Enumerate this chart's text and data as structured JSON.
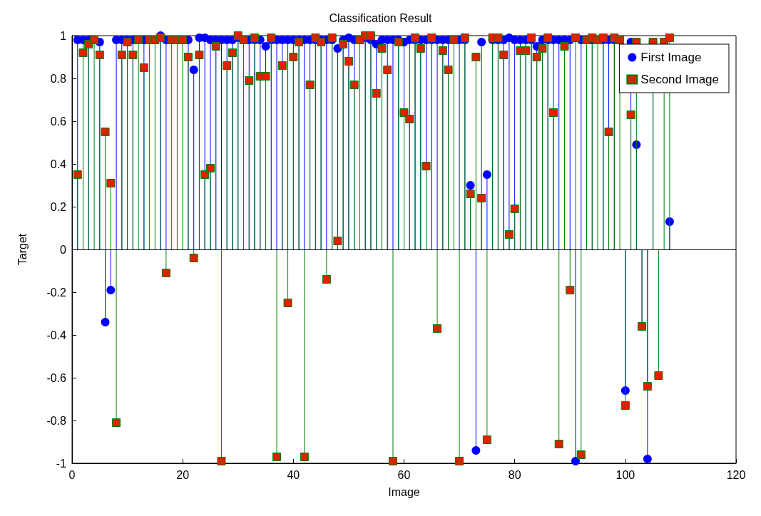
{
  "chart_data": {
    "type": "lollipop",
    "title": "Classification Result",
    "xlabel": "Image",
    "ylabel": "Target",
    "x": [
      1,
      2,
      3,
      4,
      5,
      6,
      7,
      8,
      9,
      10,
      11,
      12,
      13,
      14,
      15,
      16,
      17,
      18,
      19,
      20,
      21,
      22,
      23,
      24,
      25,
      26,
      27,
      28,
      29,
      30,
      31,
      32,
      33,
      34,
      35,
      36,
      37,
      38,
      39,
      40,
      41,
      42,
      43,
      44,
      45,
      46,
      47,
      48,
      49,
      50,
      51,
      52,
      53,
      54,
      55,
      56,
      57,
      58,
      59,
      60,
      61,
      62,
      63,
      64,
      65,
      66,
      67,
      68,
      69,
      70,
      71,
      72,
      73,
      74,
      75,
      76,
      77,
      78,
      79,
      80,
      81,
      82,
      83,
      84,
      85,
      86,
      87,
      88,
      89,
      90,
      91,
      92,
      93,
      94,
      95,
      96,
      97,
      98,
      99,
      100,
      101,
      102,
      103,
      104,
      105,
      106,
      107,
      108
    ],
    "series": [
      {
        "name": "First Image",
        "color": "#0000ff",
        "marker": "circle",
        "values": [
          0.98,
          0.98,
          0.98,
          null,
          0.97,
          -0.34,
          -0.19,
          0.98,
          0.98,
          0.98,
          0.98,
          null,
          0.98,
          null,
          null,
          1.0,
          0.98,
          null,
          null,
          null,
          0.98,
          0.84,
          0.99,
          0.99,
          0.98,
          0.98,
          0.98,
          0.98,
          0.98,
          0.99,
          null,
          0.98,
          0.98,
          0.98,
          0.95,
          0.98,
          0.98,
          0.98,
          0.98,
          0.98,
          0.98,
          0.98,
          0.98,
          0.98,
          0.98,
          0.98,
          0.98,
          0.94,
          0.98,
          0.99,
          0.98,
          null,
          0.99,
          0.98,
          0.96,
          0.98,
          0.98,
          0.98,
          0.98,
          0.97,
          0.98,
          0.98,
          0.98,
          0.98,
          0.98,
          0.98,
          0.98,
          0.98,
          null,
          0.98,
          0.98,
          0.3,
          -0.94,
          0.97,
          0.35,
          0.98,
          0.98,
          0.98,
          0.99,
          0.98,
          0.98,
          0.98,
          0.98,
          0.95,
          0.98,
          0.98,
          0.98,
          0.98,
          0.98,
          0.98,
          -0.99,
          0.98,
          null,
          0.98,
          null,
          0.98,
          0.98,
          0.98,
          null,
          -0.66,
          0.97,
          0.49,
          -0.36,
          -0.98,
          0.97,
          null,
          null,
          0.13
        ]
      },
      {
        "name": "Second Image",
        "color": "#008000",
        "marker": "square",
        "values": [
          0.35,
          0.92,
          0.96,
          0.98,
          0.91,
          0.55,
          0.31,
          -0.81,
          0.91,
          0.97,
          0.91,
          0.98,
          0.85,
          0.98,
          0.98,
          0.99,
          -0.11,
          0.98,
          0.98,
          0.98,
          0.9,
          -0.04,
          0.91,
          0.35,
          0.38,
          0.95,
          -0.99,
          0.86,
          0.92,
          1.0,
          0.98,
          0.79,
          0.99,
          0.81,
          0.81,
          0.99,
          -0.97,
          0.86,
          -0.25,
          0.9,
          0.97,
          -0.97,
          0.77,
          0.99,
          0.97,
          -0.14,
          0.99,
          0.04,
          0.96,
          0.88,
          0.77,
          0.98,
          1.0,
          1.0,
          0.73,
          0.94,
          0.84,
          -0.99,
          0.97,
          0.64,
          0.61,
          0.99,
          0.94,
          0.39,
          0.99,
          -0.37,
          0.93,
          0.84,
          0.98,
          -0.99,
          0.99,
          0.26,
          0.9,
          0.24,
          -0.89,
          0.99,
          0.99,
          0.91,
          0.07,
          0.19,
          0.93,
          0.93,
          0.99,
          0.9,
          0.94,
          0.99,
          0.64,
          -0.91,
          0.95,
          -0.19,
          0.99,
          -0.96,
          0.98,
          0.99,
          0.98,
          0.99,
          0.55,
          0.99,
          0.98,
          -0.73,
          0.63,
          0.97,
          -0.36,
          -0.64,
          0.97,
          -0.59,
          0.97,
          0.99
        ]
      }
    ],
    "xlim": [
      0,
      120
    ],
    "xticks": [
      0,
      20,
      40,
      60,
      80,
      100,
      120
    ],
    "ylim": [
      -1,
      1
    ],
    "yticks": [
      -1,
      -0.8,
      -0.6,
      -0.4,
      -0.2,
      0,
      0.2,
      0.4,
      0.6,
      0.8,
      1
    ],
    "ref_lines": [
      {
        "axis": "y",
        "value": 0,
        "color": "#000000"
      }
    ],
    "legend": "top right"
  }
}
